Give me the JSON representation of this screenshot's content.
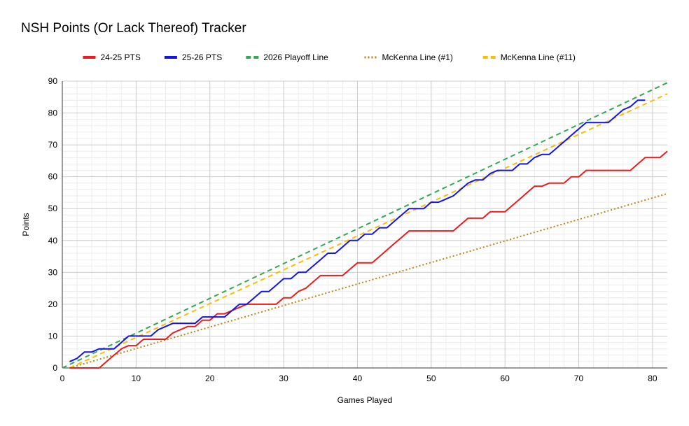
{
  "chart_data": {
    "type": "line",
    "title": "NSH Points (Or Lack Thereof) Tracker",
    "xlabel": "Games Played",
    "ylabel": "Points",
    "xlim": [
      0,
      82
    ],
    "ylim": [
      0,
      90
    ],
    "x_ticks": [
      0,
      10,
      20,
      30,
      40,
      50,
      60,
      70,
      80
    ],
    "y_ticks": [
      0,
      10,
      20,
      30,
      40,
      50,
      60,
      70,
      80,
      90
    ],
    "grid": true,
    "legend_position": "top",
    "series": [
      {
        "name": "24-25 PTS",
        "color": "#ea1c1c",
        "style": "solid",
        "x": [
          1,
          2,
          3,
          4,
          5,
          6,
          7,
          8,
          9,
          10,
          11,
          12,
          13,
          14,
          15,
          16,
          17,
          18,
          19,
          20,
          21,
          22,
          23,
          24,
          25,
          26,
          27,
          28,
          29,
          30,
          31,
          32,
          33,
          34,
          35,
          36,
          37,
          38,
          39,
          40,
          41,
          42,
          43,
          44,
          45,
          46,
          47,
          48,
          49,
          50,
          51,
          52,
          53,
          54,
          55,
          56,
          57,
          58,
          59,
          60,
          61,
          62,
          63,
          64,
          65,
          66,
          67,
          68,
          69,
          70,
          71,
          72,
          73,
          74,
          75,
          76,
          77,
          78,
          79,
          80,
          81,
          82
        ],
        "y": [
          0,
          0,
          0,
          0,
          0,
          2,
          4,
          6,
          7,
          7,
          9,
          9,
          9,
          9,
          11,
          12,
          13,
          13,
          15,
          15,
          17,
          17,
          18,
          19,
          20,
          20,
          20,
          20,
          20,
          22,
          22,
          24,
          25,
          27,
          29,
          29,
          29,
          29,
          31,
          33,
          33,
          33,
          35,
          37,
          39,
          41,
          43,
          43,
          43,
          43,
          43,
          43,
          43,
          45,
          47,
          47,
          47,
          49,
          49,
          49,
          51,
          53,
          55,
          57,
          57,
          58,
          58,
          58,
          60,
          60,
          62,
          62,
          62,
          62,
          62,
          62,
          62,
          64,
          66,
          66,
          66,
          68
        ]
      },
      {
        "name": "25-26 PTS",
        "color": "#1414e6",
        "style": "solid",
        "x": [
          1,
          2,
          3,
          4,
          5,
          6,
          7,
          8,
          9,
          10,
          11,
          12,
          13,
          14,
          15,
          16,
          17,
          18,
          19,
          20,
          21,
          22,
          23,
          24,
          25,
          26,
          27,
          28,
          29,
          30,
          31,
          32,
          33,
          34,
          35,
          36,
          37,
          38,
          39,
          40,
          41,
          42,
          43,
          44,
          45,
          46,
          47,
          48,
          49,
          50,
          51,
          52,
          53,
          54,
          55,
          56,
          57,
          58,
          59,
          60,
          61,
          62,
          63,
          64,
          65,
          66,
          67,
          68,
          69,
          70,
          71,
          72,
          73,
          74,
          75,
          76,
          77,
          78,
          79
        ],
        "y": [
          2,
          3,
          5,
          5,
          6,
          6,
          6,
          8,
          10,
          10,
          10,
          10,
          12,
          13,
          14,
          14,
          14,
          14,
          16,
          16,
          16,
          16,
          18,
          20,
          20,
          22,
          24,
          24,
          26,
          28,
          28,
          30,
          30,
          32,
          34,
          36,
          36,
          38,
          40,
          40,
          42,
          42,
          44,
          44,
          46,
          48,
          50,
          50,
          50,
          52,
          52,
          53,
          54,
          56,
          58,
          59,
          59,
          61,
          62,
          62,
          62,
          64,
          64,
          66,
          67,
          67,
          69,
          71,
          73,
          75,
          77,
          77,
          77,
          77,
          79,
          81,
          82,
          84,
          84
        ]
      },
      {
        "name": "2026 Playoff Line",
        "color": "#34a853",
        "style": "dashed",
        "x": [
          0,
          82
        ],
        "y": [
          0,
          89.5
        ]
      },
      {
        "name": "McKenna Line (#1)",
        "color": "#b8860b",
        "style": "dotted",
        "x": [
          1,
          82
        ],
        "y": [
          0,
          54.7
        ]
      },
      {
        "name": "McKenna Line (#11)",
        "color": "#fbbc04",
        "style": "dashed",
        "x": [
          1,
          82
        ],
        "y": [
          0,
          86
        ]
      }
    ]
  }
}
